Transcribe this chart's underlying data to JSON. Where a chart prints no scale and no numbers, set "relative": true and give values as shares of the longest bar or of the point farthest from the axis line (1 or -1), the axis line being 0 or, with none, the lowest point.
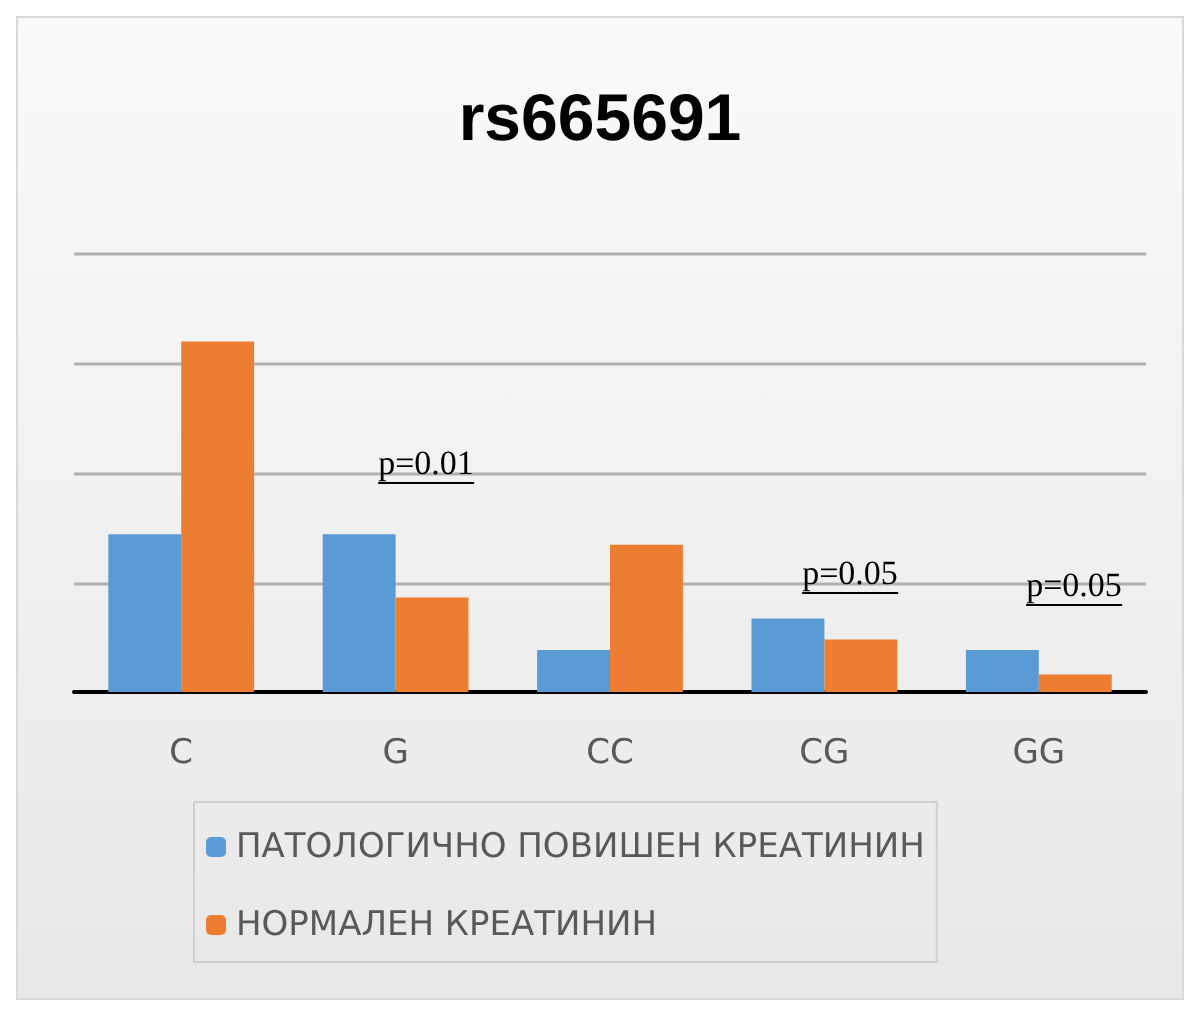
{
  "chart_data": {
    "type": "bar",
    "title": "rs665691",
    "categories": [
      "C",
      "G",
      "CC",
      "CG",
      "GG"
    ],
    "relative": true,
    "grid": "y",
    "legend": "bottom",
    "series": [
      {
        "name": "ПАТОЛОГИЧНО ПОВИШЕН КРЕАТИНИН",
        "color": "#5b9bd5",
        "values": [
          0.45,
          0.45,
          0.12,
          0.21,
          0.12
        ]
      },
      {
        "name": "НОРМАЛЕН КРЕАТИНИН",
        "color": "#ed7d31",
        "values": [
          1,
          0.27,
          0.42,
          0.15,
          0.05
        ]
      }
    ],
    "annotations": [
      "p=0.01",
      "p=0.05",
      "p=0.05"
    ]
  }
}
